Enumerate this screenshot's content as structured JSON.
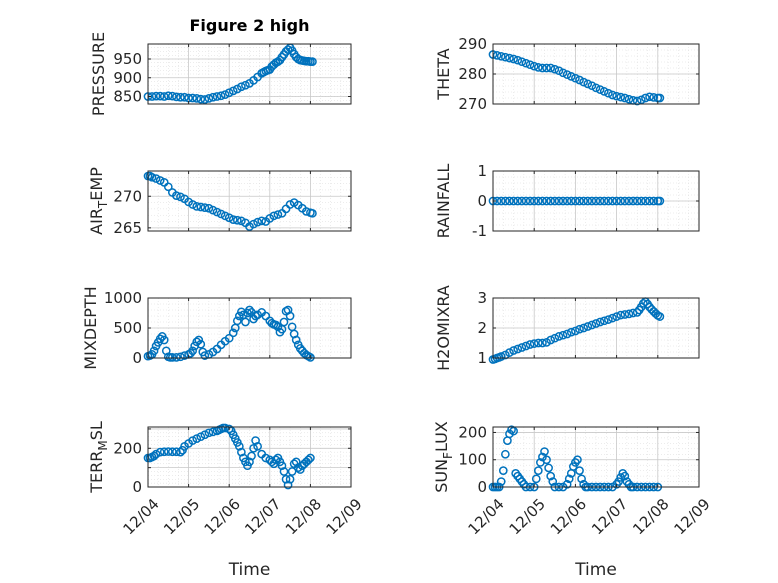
{
  "figure_title": "Figure 2 high",
  "colors": {
    "marker": "#0072BD",
    "grid": "#d9d9d9",
    "axis": "#262626"
  },
  "chart_data": [
    {
      "type": "scatter",
      "name": "pressure",
      "title": "Figure 2 high",
      "ylabel": "PRESSURE",
      "ylabel_sub": "",
      "ylabel_suffix": "",
      "xlabel": "",
      "xlim": [
        0,
        5
      ],
      "xticks": [
        0,
        1,
        2,
        3,
        4,
        5
      ],
      "xticklabels": [],
      "ylim": [
        830,
        990
      ],
      "yticks": [
        850,
        900,
        950
      ],
      "yticklabels": [
        "850",
        "900",
        "950"
      ],
      "grid": true,
      "x": [
        0,
        0.1,
        0.2,
        0.3,
        0.4,
        0.5,
        0.6,
        0.7,
        0.8,
        0.9,
        1.0,
        1.1,
        1.2,
        1.3,
        1.4,
        1.5,
        1.6,
        1.7,
        1.8,
        1.9,
        2.0,
        2.1,
        2.2,
        2.3,
        2.4,
        2.5,
        2.6,
        2.7,
        2.8,
        2.85,
        2.9,
        2.95,
        3.0,
        3.05,
        3.1,
        3.15,
        3.2,
        3.25,
        3.3,
        3.35,
        3.4,
        3.45,
        3.5,
        3.55,
        3.6,
        3.65,
        3.7,
        3.75,
        3.8,
        3.85,
        3.9,
        3.95,
        4.0,
        4.05
      ],
      "y": [
        850,
        850,
        851,
        851,
        850,
        852,
        851,
        849,
        848,
        848,
        846,
        846,
        845,
        843,
        842,
        845,
        848,
        850,
        852,
        855,
        860,
        865,
        870,
        876,
        880,
        885,
        893,
        902,
        912,
        915,
        918,
        920,
        922,
        930,
        935,
        940,
        943,
        947,
        955,
        962,
        970,
        975,
        980,
        972,
        963,
        955,
        950,
        947,
        946,
        945,
        944,
        944,
        943,
        943
      ]
    },
    {
      "type": "scatter",
      "name": "theta",
      "title": "",
      "ylabel": "THETA",
      "ylabel_sub": "",
      "ylabel_suffix": "",
      "xlabel": "",
      "xlim": [
        0,
        5
      ],
      "xticks": [
        0,
        1,
        2,
        3,
        4,
        5
      ],
      "xticklabels": [],
      "ylim": [
        270,
        290
      ],
      "yticks": [
        270,
        280,
        290
      ],
      "yticklabels": [
        "270",
        "280",
        "290"
      ],
      "grid": true,
      "x": [
        0,
        0.1,
        0.2,
        0.3,
        0.4,
        0.5,
        0.6,
        0.7,
        0.8,
        0.9,
        1.0,
        1.1,
        1.2,
        1.3,
        1.4,
        1.5,
        1.6,
        1.7,
        1.8,
        1.9,
        2.0,
        2.1,
        2.2,
        2.3,
        2.4,
        2.5,
        2.6,
        2.7,
        2.8,
        2.9,
        3.0,
        3.1,
        3.2,
        3.3,
        3.4,
        3.5,
        3.6,
        3.7,
        3.8,
        3.9,
        4.0,
        4.05
      ],
      "y": [
        286.5,
        286.2,
        285.9,
        285.6,
        285.3,
        285.0,
        284.6,
        284.1,
        283.6,
        283.1,
        282.6,
        282.2,
        282.0,
        282.0,
        282.0,
        281.6,
        281.1,
        280.4,
        279.8,
        279.2,
        278.6,
        278.0,
        277.3,
        276.7,
        276.1,
        275.4,
        274.8,
        274.2,
        273.6,
        273.0,
        272.6,
        272.3,
        272.0,
        271.6,
        271.2,
        271.0,
        271.4,
        272.0,
        272.4,
        272.2,
        272.0,
        272.0
      ]
    },
    {
      "type": "scatter",
      "name": "air-temp",
      "title": "",
      "ylabel": "AIR",
      "ylabel_sub": "T",
      "ylabel_suffix": "EMP",
      "xlabel": "",
      "xlim": [
        0,
        5
      ],
      "xticks": [
        0,
        1,
        2,
        3,
        4,
        5
      ],
      "xticklabels": [],
      "ylim": [
        264.5,
        274
      ],
      "yticks": [
        265,
        270
      ],
      "yticklabels": [
        "265",
        "270"
      ],
      "grid": true,
      "x": [
        0,
        0.05,
        0.1,
        0.2,
        0.3,
        0.4,
        0.5,
        0.6,
        0.7,
        0.8,
        0.9,
        1.0,
        1.1,
        1.2,
        1.3,
        1.4,
        1.5,
        1.6,
        1.7,
        1.8,
        1.9,
        2.0,
        2.1,
        2.2,
        2.3,
        2.4,
        2.5,
        2.6,
        2.7,
        2.8,
        2.9,
        3.0,
        3.1,
        3.2,
        3.3,
        3.4,
        3.5,
        3.6,
        3.7,
        3.8,
        3.9,
        4.0,
        4.05
      ],
      "y": [
        273.2,
        273.2,
        273.0,
        272.8,
        272.5,
        272.2,
        271.5,
        270.6,
        270.1,
        269.9,
        269.6,
        269.1,
        268.7,
        268.4,
        268.3,
        268.2,
        268.1,
        267.8,
        267.5,
        267.2,
        266.9,
        266.6,
        266.3,
        266.2,
        266.1,
        265.8,
        265.2,
        265.6,
        265.9,
        266.1,
        266.0,
        266.5,
        266.9,
        267.1,
        267.3,
        268.0,
        268.7,
        269.0,
        268.6,
        268.1,
        267.6,
        267.4,
        267.3
      ]
    },
    {
      "type": "scatter",
      "name": "rainfall",
      "title": "",
      "ylabel": "RAINFALL",
      "ylabel_sub": "",
      "ylabel_suffix": "",
      "xlabel": "",
      "xlim": [
        0,
        5
      ],
      "xticks": [
        0,
        1,
        2,
        3,
        4,
        5
      ],
      "xticklabels": [],
      "ylim": [
        -1,
        1
      ],
      "yticks": [
        -1,
        0,
        1
      ],
      "yticklabels": [
        "-1",
        "0",
        "1"
      ],
      "grid": true,
      "x": [
        0,
        0.1,
        0.2,
        0.3,
        0.4,
        0.5,
        0.6,
        0.7,
        0.8,
        0.9,
        1.0,
        1.1,
        1.2,
        1.3,
        1.4,
        1.5,
        1.6,
        1.7,
        1.8,
        1.9,
        2.0,
        2.1,
        2.2,
        2.3,
        2.4,
        2.5,
        2.6,
        2.7,
        2.8,
        2.9,
        3.0,
        3.1,
        3.2,
        3.3,
        3.4,
        3.5,
        3.6,
        3.7,
        3.8,
        3.9,
        4.0,
        4.05
      ],
      "y": [
        0,
        0,
        0,
        0,
        0,
        0,
        0,
        0,
        0,
        0,
        0,
        0,
        0,
        0,
        0,
        0,
        0,
        0,
        0,
        0,
        0,
        0,
        0,
        0,
        0,
        0,
        0,
        0,
        0,
        0,
        0,
        0,
        0,
        0,
        0,
        0,
        0,
        0,
        0,
        0,
        0,
        0
      ]
    },
    {
      "type": "scatter",
      "name": "mixdepth",
      "title": "",
      "ylabel": "MIXDEPTH",
      "ylabel_sub": "",
      "ylabel_suffix": "",
      "xlabel": "",
      "xlim": [
        0,
        5
      ],
      "xticks": [
        0,
        1,
        2,
        3,
        4,
        5
      ],
      "xticklabels": [],
      "ylim": [
        0,
        1000
      ],
      "yticks": [
        0,
        500,
        1000
      ],
      "yticklabels": [
        "0",
        "500",
        "1000"
      ],
      "grid": true,
      "x": [
        0,
        0.05,
        0.1,
        0.15,
        0.2,
        0.25,
        0.3,
        0.35,
        0.4,
        0.45,
        0.5,
        0.55,
        0.6,
        0.7,
        0.8,
        0.9,
        1.0,
        1.05,
        1.1,
        1.15,
        1.2,
        1.25,
        1.3,
        1.35,
        1.4,
        1.5,
        1.6,
        1.7,
        1.8,
        1.9,
        2.0,
        2.1,
        2.15,
        2.2,
        2.25,
        2.3,
        2.35,
        2.4,
        2.45,
        2.5,
        2.55,
        2.6,
        2.65,
        2.7,
        2.8,
        2.9,
        3.0,
        3.05,
        3.1,
        3.15,
        3.2,
        3.25,
        3.3,
        3.35,
        3.4,
        3.45,
        3.5,
        3.55,
        3.6,
        3.65,
        3.7,
        3.75,
        3.8,
        3.85,
        3.9,
        3.95,
        4.0
      ],
      "y": [
        30,
        40,
        60,
        120,
        200,
        260,
        320,
        360,
        300,
        120,
        20,
        10,
        10,
        10,
        20,
        40,
        60,
        80,
        120,
        200,
        270,
        300,
        230,
        100,
        40,
        60,
        100,
        150,
        220,
        280,
        330,
        420,
        500,
        620,
        700,
        770,
        720,
        600,
        750,
        800,
        760,
        650,
        700,
        720,
        760,
        700,
        620,
        580,
        560,
        550,
        520,
        430,
        480,
        600,
        780,
        800,
        700,
        520,
        400,
        300,
        220,
        160,
        120,
        80,
        50,
        30,
        10
      ]
    },
    {
      "type": "scatter",
      "name": "h2omixra",
      "title": "",
      "ylabel": "H2OMIXRA",
      "ylabel_sub": "",
      "ylabel_suffix": "",
      "xlabel": "",
      "xlim": [
        0,
        5
      ],
      "xticks": [
        0,
        1,
        2,
        3,
        4,
        5
      ],
      "xticklabels": [],
      "ylim": [
        1,
        3
      ],
      "yticks": [
        1,
        2,
        3
      ],
      "yticklabels": [
        "1",
        "2",
        "3"
      ],
      "grid": true,
      "x": [
        0,
        0.05,
        0.1,
        0.15,
        0.2,
        0.3,
        0.4,
        0.5,
        0.6,
        0.7,
        0.8,
        0.9,
        1.0,
        1.1,
        1.2,
        1.3,
        1.4,
        1.5,
        1.6,
        1.7,
        1.8,
        1.9,
        2.0,
        2.1,
        2.2,
        2.3,
        2.4,
        2.5,
        2.6,
        2.7,
        2.8,
        2.9,
        3.0,
        3.1,
        3.2,
        3.3,
        3.4,
        3.5,
        3.55,
        3.6,
        3.65,
        3.7,
        3.75,
        3.8,
        3.85,
        3.9,
        3.95,
        4.0,
        4.05
      ],
      "y": [
        0.95,
        0.97,
        1.0,
        1.02,
        1.05,
        1.1,
        1.18,
        1.25,
        1.3,
        1.35,
        1.4,
        1.45,
        1.48,
        1.5,
        1.5,
        1.52,
        1.6,
        1.66,
        1.72,
        1.76,
        1.8,
        1.86,
        1.9,
        1.96,
        2.0,
        2.05,
        2.1,
        2.15,
        2.2,
        2.24,
        2.28,
        2.33,
        2.38,
        2.43,
        2.45,
        2.47,
        2.5,
        2.52,
        2.6,
        2.7,
        2.82,
        2.88,
        2.8,
        2.7,
        2.62,
        2.55,
        2.48,
        2.42,
        2.38
      ]
    },
    {
      "type": "scatter",
      "name": "terr-msl",
      "title": "",
      "ylabel": "TERR",
      "ylabel_sub": "M",
      "ylabel_suffix": "SL",
      "xlabel": "Time",
      "xlim": [
        0,
        5
      ],
      "xticks": [
        0,
        1,
        2,
        3,
        4,
        5
      ],
      "xticklabels": [
        "12/04",
        "12/05",
        "12/06",
        "12/07",
        "12/08",
        "12/09"
      ],
      "ylim": [
        0,
        310
      ],
      "yticks": [
        0,
        100,
        200,
        300
      ],
      "yticklabels": [
        "0",
        "",
        "200",
        ""
      ],
      "grid": true,
      "x": [
        0,
        0.05,
        0.1,
        0.15,
        0.2,
        0.3,
        0.4,
        0.5,
        0.6,
        0.7,
        0.8,
        0.85,
        0.9,
        1.0,
        1.1,
        1.2,
        1.3,
        1.4,
        1.5,
        1.6,
        1.7,
        1.75,
        1.8,
        1.85,
        1.9,
        2.0,
        2.05,
        2.1,
        2.15,
        2.2,
        2.25,
        2.3,
        2.35,
        2.4,
        2.45,
        2.5,
        2.55,
        2.6,
        2.65,
        2.7,
        2.8,
        2.9,
        3.0,
        3.05,
        3.1,
        3.15,
        3.2,
        3.25,
        3.3,
        3.35,
        3.4,
        3.45,
        3.5,
        3.55,
        3.6,
        3.65,
        3.7,
        3.75,
        3.8,
        3.85,
        3.9,
        3.95,
        4.0
      ],
      "y": [
        150,
        150,
        155,
        160,
        170,
        180,
        182,
        183,
        182,
        182,
        180,
        190,
        210,
        225,
        240,
        250,
        260,
        270,
        280,
        285,
        290,
        295,
        300,
        305,
        305,
        300,
        290,
        270,
        250,
        230,
        210,
        180,
        150,
        130,
        110,
        130,
        160,
        200,
        240,
        210,
        170,
        150,
        140,
        130,
        120,
        140,
        150,
        130,
        110,
        80,
        40,
        10,
        40,
        80,
        120,
        130,
        100,
        90,
        110,
        120,
        130,
        140,
        150
      ]
    },
    {
      "type": "scatter",
      "name": "sun-flux",
      "title": "",
      "ylabel": "SUN",
      "ylabel_sub": "F",
      "ylabel_suffix": "LUX",
      "xlabel": "Time",
      "xlim": [
        0,
        5
      ],
      "xticks": [
        0,
        1,
        2,
        3,
        4,
        5
      ],
      "xticklabels": [
        "12/04",
        "12/05",
        "12/06",
        "12/07",
        "12/08",
        "12/09"
      ],
      "ylim": [
        0,
        220
      ],
      "yticks": [
        0,
        100,
        200
      ],
      "yticklabels": [
        "0",
        "100",
        "200"
      ],
      "grid": true,
      "x": [
        0,
        0.05,
        0.1,
        0.15,
        0.2,
        0.25,
        0.3,
        0.35,
        0.4,
        0.45,
        0.5,
        0.55,
        0.6,
        0.65,
        0.7,
        0.75,
        0.8,
        0.9,
        1.0,
        1.05,
        1.1,
        1.15,
        1.2,
        1.25,
        1.3,
        1.35,
        1.4,
        1.45,
        1.5,
        1.6,
        1.7,
        1.8,
        1.85,
        1.9,
        1.95,
        2.0,
        2.05,
        2.1,
        2.15,
        2.2,
        2.25,
        2.3,
        2.4,
        2.5,
        2.6,
        2.7,
        2.8,
        2.9,
        3.0,
        3.05,
        3.1,
        3.15,
        3.2,
        3.25,
        3.3,
        3.35,
        3.4,
        3.5,
        3.6,
        3.7,
        3.8,
        3.9,
        4.0
      ],
      "y": [
        0,
        0,
        0,
        0,
        20,
        60,
        120,
        170,
        195,
        210,
        205,
        50,
        40,
        30,
        20,
        10,
        0,
        0,
        0,
        30,
        60,
        90,
        110,
        130,
        100,
        70,
        40,
        20,
        0,
        0,
        0,
        10,
        30,
        50,
        75,
        90,
        100,
        60,
        30,
        10,
        0,
        0,
        0,
        0,
        0,
        0,
        0,
        0,
        10,
        20,
        35,
        50,
        40,
        20,
        10,
        0,
        0,
        0,
        0,
        0,
        0,
        0,
        0
      ]
    }
  ]
}
